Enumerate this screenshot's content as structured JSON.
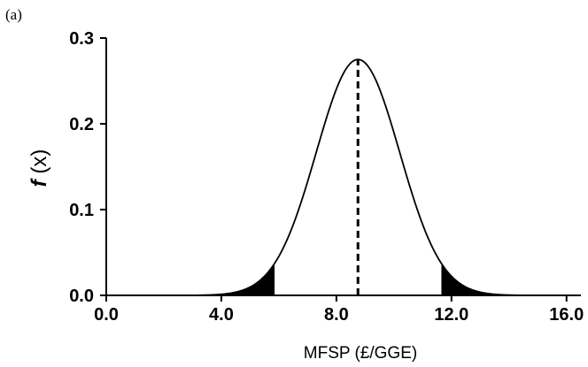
{
  "chart_data": {
    "type": "line",
    "panel_label": "(a)",
    "title": "",
    "xlabel": "MFSP (£/GGE)",
    "ylabel_italic": "f",
    "ylabel_rest": " (x)",
    "xlim": [
      0.0,
      16.5
    ],
    "ylim": [
      0.0,
      0.3
    ],
    "x_ticks": [
      0.0,
      4.0,
      8.0,
      12.0,
      16.0
    ],
    "x_tick_labels": [
      "0.0",
      "4.0",
      "8.0",
      "12.0",
      "16.0"
    ],
    "y_ticks": [
      0.0,
      0.1,
      0.2,
      0.3
    ],
    "y_tick_labels": [
      "0.0",
      "0.1",
      "0.2",
      "0.3"
    ],
    "grid": false,
    "series": [
      {
        "distribution": "normal",
        "mean": 8.75,
        "sd": 1.45,
        "peak": 0.275,
        "x_range": [
          3.2,
          14.8
        ]
      }
    ],
    "mean_line": {
      "x": 8.75,
      "style": "dashed"
    },
    "shaded_tails": [
      {
        "from": 3.2,
        "to": 5.85
      },
      {
        "from": 11.65,
        "to": 14.8
      }
    ],
    "colors": {
      "line": "#000000",
      "fill": "#000000",
      "axis": "#000000"
    }
  }
}
